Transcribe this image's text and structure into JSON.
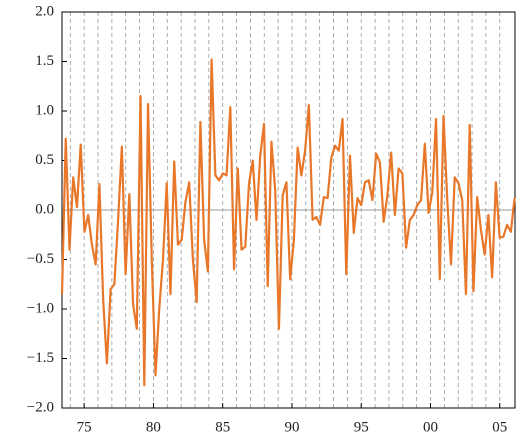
{
  "chart_data": {
    "type": "line",
    "x": [
      1973.4,
      1973.67,
      1973.94,
      1974.21,
      1974.48,
      1974.75,
      1975.02,
      1975.29,
      1975.56,
      1975.83,
      1976.1,
      1976.37,
      1976.64,
      1976.91,
      1977.18,
      1977.45,
      1977.72,
      1977.99,
      1978.26,
      1978.53,
      1978.8,
      1979.07,
      1979.34,
      1979.61,
      1979.88,
      1980.15,
      1980.42,
      1980.69,
      1980.96,
      1981.23,
      1981.5,
      1981.77,
      1982.04,
      1982.31,
      1982.58,
      1982.85,
      1983.12,
      1983.39,
      1983.66,
      1983.93,
      1984.2,
      1984.47,
      1984.74,
      1985.01,
      1985.28,
      1985.55,
      1985.82,
      1986.09,
      1986.36,
      1986.63,
      1986.9,
      1987.17,
      1987.44,
      1987.71,
      1987.98,
      1988.25,
      1988.52,
      1988.79,
      1989.06,
      1989.33,
      1989.6,
      1989.87,
      1990.14,
      1990.41,
      1990.68,
      1990.95,
      1991.22,
      1991.49,
      1991.76,
      1992.03,
      1992.3,
      1992.57,
      1992.84,
      1993.11,
      1993.38,
      1993.65,
      1993.92,
      1994.19,
      1994.46,
      1994.73,
      1995.0,
      1995.27,
      1995.54,
      1995.81,
      1996.08,
      1996.35,
      1996.62,
      1996.89,
      1997.16,
      1997.43,
      1997.7,
      1997.97,
      1998.24,
      1998.51,
      1998.78,
      1999.05,
      1999.32,
      1999.59,
      1999.86,
      2000.13,
      2000.4,
      2000.67,
      2000.94,
      2001.21,
      2001.48,
      2001.75,
      2002.02,
      2002.29,
      2002.56,
      2002.83,
      2003.1,
      2003.37,
      2003.64,
      2003.91,
      2004.18,
      2004.45,
      2004.72,
      2004.99,
      2005.26,
      2005.53,
      2005.8,
      2006.07
    ],
    "series": [
      {
        "color": "#e8772a",
        "values": [
          -0.85,
          0.72,
          -0.4,
          0.33,
          0.03,
          0.66,
          -0.22,
          -0.05,
          -0.35,
          -0.55,
          0.26,
          -0.9,
          -1.55,
          -0.8,
          -0.75,
          -0.1,
          0.64,
          -0.65,
          0.16,
          -0.95,
          -1.2,
          1.15,
          -1.77,
          1.07,
          -0.5,
          -1.67,
          -1.0,
          -0.5,
          0.27,
          -0.85,
          0.49,
          -0.35,
          -0.3,
          0.08,
          0.28,
          -0.5,
          -0.93,
          0.89,
          -0.3,
          -0.62,
          1.52,
          0.35,
          0.3,
          0.37,
          0.35,
          1.04,
          -0.6,
          0.42,
          -0.4,
          -0.37,
          0.27,
          0.5,
          -0.1,
          0.55,
          0.87,
          -0.77,
          0.69,
          0.2,
          -1.2,
          0.15,
          0.28,
          -0.7,
          -0.3,
          0.63,
          0.35,
          0.6,
          1.06,
          -0.1,
          -0.07,
          -0.15,
          0.13,
          0.12,
          0.53,
          0.65,
          0.6,
          0.92,
          -0.65,
          0.55,
          -0.23,
          0.12,
          0.05,
          0.28,
          0.3,
          0.1,
          0.57,
          0.48,
          -0.12,
          0.15,
          0.58,
          -0.05,
          0.42,
          0.37,
          -0.38,
          -0.1,
          -0.05,
          0.05,
          0.1,
          0.67,
          -0.03,
          0.18,
          0.92,
          -0.7,
          0.95,
          0.1,
          -0.55,
          0.33,
          0.27,
          0.1,
          -0.85,
          0.86,
          -0.82,
          0.13,
          -0.2,
          -0.45,
          -0.05,
          -0.68,
          0.28,
          -0.28,
          -0.27,
          -0.15,
          -0.22,
          0.12
        ]
      }
    ],
    "xlim": [
      1973.4,
      2006.1
    ],
    "xticks": [
      {
        "value": 1975,
        "label": "75"
      },
      {
        "value": 1980,
        "label": "80"
      },
      {
        "value": 1985,
        "label": "85"
      },
      {
        "value": 1990,
        "label": "90"
      },
      {
        "value": 1995,
        "label": "95"
      },
      {
        "value": 2000,
        "label": "00"
      },
      {
        "value": 2005,
        "label": "05"
      }
    ],
    "xminorticks": [
      1974,
      1975,
      1976,
      1977,
      1978,
      1979,
      1980,
      1981,
      1982,
      1983,
      1984,
      1985,
      1986,
      1987,
      1988,
      1989,
      1990,
      1991,
      1992,
      1993,
      1994,
      1995,
      1996,
      1997,
      1998,
      1999,
      2000,
      2001,
      2002,
      2003,
      2004,
      2005
    ],
    "ylim": [
      -2,
      2
    ],
    "yticks": [
      {
        "value": -2,
        "label": "−2.0"
      },
      {
        "value": -1.5,
        "label": "−1.5"
      },
      {
        "value": -1,
        "label": "−1.0"
      },
      {
        "value": -0.5,
        "label": "−0.5"
      },
      {
        "value": 0,
        "label": "0.0"
      },
      {
        "value": 0.5,
        "label": "0.5"
      },
      {
        "value": 1,
        "label": "1.0"
      },
      {
        "value": 1.5,
        "label": "1.5"
      },
      {
        "value": 2,
        "label": "2.0"
      }
    ],
    "grid": true
  }
}
